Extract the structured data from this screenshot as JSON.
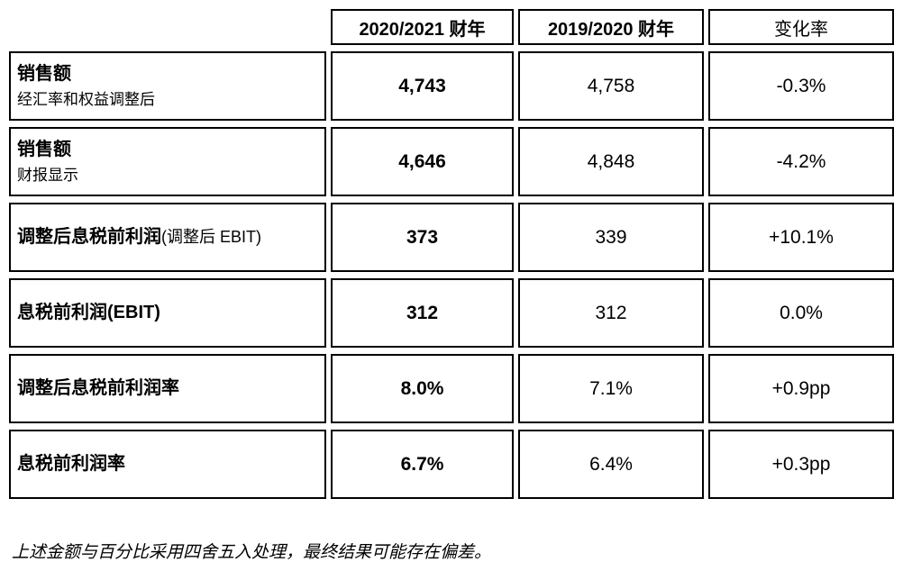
{
  "table": {
    "header": {
      "fy_current": "2020/2021 财年",
      "fy_previous": "2019/2020 财年",
      "change": "变化率"
    },
    "rows": [
      {
        "label": "销售额",
        "sublabel": "经汇率和权益调整后",
        "fy_current": "4,743",
        "fy_previous": "4,758",
        "change": "-0.3%"
      },
      {
        "label": "销售额",
        "sublabel": "财报显示",
        "fy_current": "4,646",
        "fy_previous": "4,848",
        "change": "-4.2%"
      },
      {
        "label": "调整后息税前利润",
        "label_suffix": "(调整后 EBIT)",
        "fy_current": "373",
        "fy_previous": "339",
        "change": "+10.1%"
      },
      {
        "label": "息税前利润(EBIT)",
        "fy_current": "312",
        "fy_previous": "312",
        "change": "0.0%"
      },
      {
        "label": "调整后息税前利润率",
        "fy_current": "8.0%",
        "fy_previous": "7.1%",
        "change": "+0.9pp"
      },
      {
        "label": "息税前利润率",
        "fy_current": "6.7%",
        "fy_previous": "6.4%",
        "change": "+0.3pp"
      }
    ],
    "footnote": "上述金额与百分比采用四舍五入处理，最终结果可能存在偏差。"
  },
  "colors": {
    "border": "#000000",
    "text": "#000000",
    "background": "#ffffff"
  }
}
